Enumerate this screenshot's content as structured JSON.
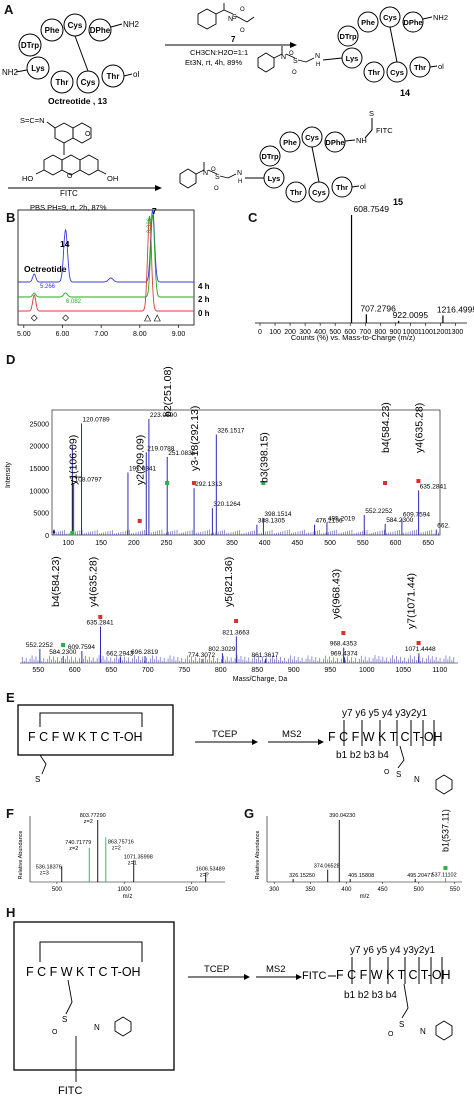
{
  "panels": {
    "A": {
      "label": "A",
      "octreotide_name": "Octreotide , 13",
      "residues": [
        "Phe",
        "Cys",
        "DPhe",
        "DTrp",
        "Lys",
        "Thr",
        "Cys",
        "Thr"
      ],
      "termini": {
        "nh2_right": "NH2",
        "nh2_left": "NH2",
        "thr_ol": "ol"
      },
      "reagent_7_label": "7",
      "conditions_1": {
        "solvent": "CH3CN:H2O=1:1",
        "rest": "Et3N, rt, 4h, 89%"
      },
      "product_14": "14",
      "reagent_fitc": "FITC",
      "reagent_fitc_atoms": {
        "ncs": "S=C=N",
        "oh_left": "HO",
        "oh_right": "OH",
        "o": "O"
      },
      "conditions_2": "PBS PH=9, rt, 2h, 87%",
      "product_15": "15",
      "fitc_label": "FITC",
      "atoms": {
        "s": "S",
        "o": "O",
        "n": "N",
        "h": "H",
        "nh": "NH",
        "thiourea": "S"
      }
    },
    "B": {
      "label": "B",
      "peak_labels": {
        "p14": "14",
        "p7": "7",
        "octreotide": "Octreotide"
      },
      "rt_labels": [
        "5.266",
        "6.082",
        "8.326"
      ],
      "traces": [
        "4 h",
        "2 h",
        "0 h"
      ],
      "xticks": [
        "5.00",
        "6.00",
        "7.00",
        "8.00",
        "9.00"
      ],
      "colors": {
        "t4h": "#3b3bd9",
        "t2h": "#22aa22",
        "t0h": "#d93b3b"
      }
    },
    "C": {
      "label": "C",
      "peaks": [
        {
          "mz": 608.7549,
          "label": "608.7549",
          "rel": 1.0
        },
        {
          "mz": 707.2796,
          "label": "707.2796",
          "rel": 0.08
        },
        {
          "mz": 922.0095,
          "label": "922.0095",
          "rel": 0.02
        },
        {
          "mz": 1216.4995,
          "label": "1216.4995",
          "rel": 0.07
        }
      ],
      "xticks": [
        "0",
        "100",
        "200",
        "300",
        "400",
        "500",
        "600",
        "700",
        "800",
        "900",
        "1000",
        "1100",
        "1200",
        "1300"
      ],
      "xlabel": "Counts (%) vs. Mass-to-Charge (m/z)"
    },
    "D": {
      "label": "D",
      "top": {
        "ylabel": "Intensity",
        "yticks": [
          "0",
          "5000",
          "10000",
          "15000",
          "20000",
          "25000"
        ],
        "xticks": [
          "100",
          "150",
          "200",
          "250",
          "300",
          "350",
          "400",
          "450",
          "500",
          "550",
          "600",
          "650"
        ],
        "peaks": [
          {
            "mz": 106.09,
            "int": 20000,
            "label": "106.09",
            "hide": true
          },
          {
            "mz": 108.08,
            "int": 11500,
            "label": "108.0797"
          },
          {
            "mz": 120.08,
            "int": 25000,
            "label": "120.0789"
          },
          {
            "mz": 191.08,
            "int": 14000,
            "label": "191.0841"
          },
          {
            "mz": 219.08,
            "int": 18500,
            "label": "219.0788"
          },
          {
            "mz": 223.09,
            "int": 26000,
            "label": "223.0890"
          },
          {
            "mz": 251.08,
            "int": 17500,
            "label": "251.0835"
          },
          {
            "mz": 292.13,
            "int": 10500,
            "label": "292.1313"
          },
          {
            "mz": 320.13,
            "int": 6000,
            "label": "320.1264"
          },
          {
            "mz": 326.15,
            "int": 22500,
            "label": "326.1517"
          },
          {
            "mz": 388.13,
            "int": 2300,
            "label": "388.1305"
          },
          {
            "mz": 398.15,
            "int": 3800,
            "label": "398.1514"
          },
          {
            "mz": 476.22,
            "int": 2300,
            "label": "476.2156"
          },
          {
            "mz": 495.2,
            "int": 2800,
            "label": "495.2019"
          },
          {
            "mz": 552.23,
            "int": 4500,
            "label": "552.2252"
          },
          {
            "mz": 584.23,
            "int": 2500,
            "label": "584.2300"
          },
          {
            "mz": 609.76,
            "int": 3700,
            "label": "609.7594"
          },
          {
            "mz": 635.28,
            "int": 10000,
            "label": "635.2841"
          },
          {
            "mz": 662.3,
            "int": 1200,
            "label": "662."
          }
        ],
        "annotations": [
          "y1(106.09)",
          "y2(209.09)",
          "b2(251.08)",
          "y3-18(292.13)",
          "b3(398.15)",
          "b4(584.23)",
          "y4(635.28)"
        ]
      },
      "bottom": {
        "xlabel": "Mass/Charge, Da",
        "xticks": [
          "550",
          "600",
          "650",
          "700",
          "750",
          "800",
          "850",
          "900",
          "950",
          "1000",
          "1050",
          "1100"
        ],
        "peaks": [
          {
            "mz": 552.23,
            "rel": 0.2,
            "label": "552.2252"
          },
          {
            "mz": 584.23,
            "rel": 0.1,
            "label": "584.2300"
          },
          {
            "mz": 609.76,
            "rel": 0.17,
            "label": "609.7594"
          },
          {
            "mz": 635.28,
            "rel": 0.52,
            "label": "635.2841"
          },
          {
            "mz": 662.29,
            "rel": 0.08,
            "label": "662.2943"
          },
          {
            "mz": 696.28,
            "rel": 0.1,
            "label": "696.2819"
          },
          {
            "mz": 774.31,
            "rel": 0.06,
            "label": "774.3072"
          },
          {
            "mz": 802.3,
            "rel": 0.14,
            "label": "802.3029"
          },
          {
            "mz": 821.37,
            "rel": 0.38,
            "label": "821.3663"
          },
          {
            "mz": 861.36,
            "rel": 0.06,
            "label": "861.3617"
          },
          {
            "mz": 968.44,
            "rel": 0.22,
            "label": "968.4353"
          },
          {
            "mz": 969.44,
            "rel": 0.08,
            "label": "969.4374"
          },
          {
            "mz": 1071.44,
            "rel": 0.14,
            "label": "1071.4448"
          }
        ],
        "annotations": [
          "b4(584.23)",
          "y4(635.28)",
          "y5(821.36)",
          "y6(968.43)",
          "y7(1071.44)"
        ]
      }
    },
    "E": {
      "label": "E",
      "sequence": "F C F W K T C T-OH",
      "arrow1": "TCEP",
      "arrow2": "MS2",
      "y_ions": "y7 y6 y5 y4 y3y2y1",
      "b_ions": "b1 b2 b3 b4",
      "atoms": {
        "s": "S",
        "o": "O",
        "n": "N"
      }
    },
    "F": {
      "label": "F",
      "ylabel": "Relative Abundance",
      "xlabel": "m/z",
      "xticks": [
        "500",
        "1000",
        "1500"
      ],
      "peaks": [
        {
          "label": "536.18376",
          "sub": "z=3",
          "mz": 536.18,
          "rel": 0.25
        },
        {
          "label": "740.71779",
          "sub": "z=2",
          "mz": 740.72,
          "rel": 0.55
        },
        {
          "label": "803.77290",
          "sub": "z=2",
          "mz": 803.77,
          "rel": 1.0
        },
        {
          "label": "863.75716",
          "sub": "z=2",
          "mz": 863.76,
          "rel": 0.72
        },
        {
          "label": "1071.35998",
          "sub": "z=1",
          "mz": 1071.36,
          "rel": 0.35
        },
        {
          "label": "1606.53489",
          "sub": "z=?",
          "mz": 1606.53,
          "rel": 0.15
        }
      ]
    },
    "G": {
      "label": "G",
      "ylabel": "Relative Abundance",
      "xlabel": "m/z",
      "xticks": [
        "300",
        "350",
        "400",
        "450",
        "500",
        "550"
      ],
      "annotation": "b1(537.11)",
      "peaks": [
        {
          "label": "326.15250",
          "mz": 326.15,
          "rel": 0.05
        },
        {
          "label": "374.06528",
          "mz": 374.07,
          "rel": 0.2
        },
        {
          "label": "390.04230",
          "mz": 390.04,
          "rel": 1.0
        },
        {
          "label": "405.15808",
          "mz": 405.16,
          "rel": 0.05
        },
        {
          "label": "495.20477",
          "mz": 495.2,
          "rel": 0.05
        },
        {
          "label": "537.11102",
          "mz": 537.11,
          "rel": 0.06
        }
      ]
    },
    "H": {
      "label": "H",
      "sequence": "F C F W K T C T-OH",
      "arrow1": "TCEP",
      "arrow2": "MS2",
      "fitc_left": "FITC",
      "fitc_bottom": "FITC",
      "y_ions": "y7 y6 y5 y4 y3y2y1",
      "b_ions": "b1 b2 b3 b4",
      "atoms": {
        "s": "S",
        "o": "O",
        "n": "N"
      }
    }
  }
}
